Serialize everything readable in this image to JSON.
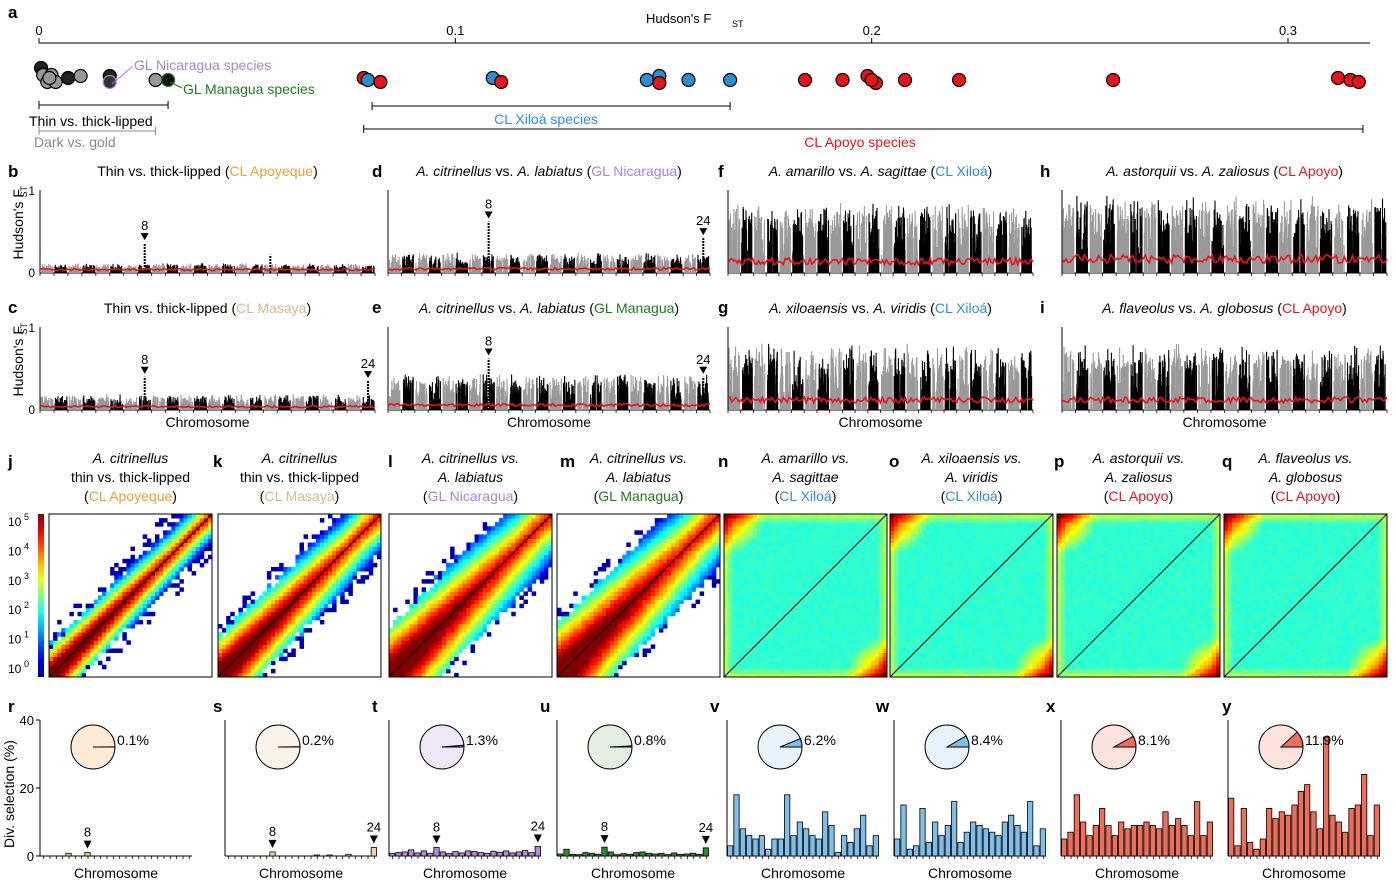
{
  "figure": {
    "letters": [
      "a",
      "b",
      "c",
      "d",
      "e",
      "f",
      "g",
      "h",
      "i",
      "j",
      "k",
      "l",
      "m",
      "n",
      "o",
      "p",
      "q",
      "r",
      "s",
      "t",
      "u",
      "v",
      "w",
      "x",
      "y"
    ]
  },
  "colors": {
    "dark": "#222222",
    "gray": "#999999",
    "apoyeque": "#E8A030",
    "masaya": "#D9B88A",
    "gl_nicaragua": "#B07FD6",
    "gl_managua": "#1E7A1E",
    "xiloa": "#2A8FD0",
    "apoyo": "#E8141B",
    "fst_red": "#E8141B",
    "hist_apoyeque": "#F2C98A",
    "hist_masaya": "#E6D3B4",
    "hist_nicaragua": "#B58AD9",
    "hist_managua": "#2E8B2E",
    "hist_xiloa": "#7DBEEA",
    "hist_apoyo": "#EE6E5A",
    "pie_apoyeque": "#FDEBD6",
    "pie_masaya": "#FBF3EA",
    "pie_nicaragua": "#EFE6F8",
    "pie_managua": "#E3EEE1",
    "pie_xiloa": "#E8F2FB",
    "pie_apoyo": "#FBE2DD"
  },
  "panel_a": {
    "axis_title": "Hudson's F",
    "axis_title_sub": "ST",
    "ticks": [
      {
        "value": 0,
        "label": "0"
      },
      {
        "value": 0.1,
        "label": "0.1"
      },
      {
        "value": 0.2,
        "label": "0.2"
      },
      {
        "value": 0.3,
        "label": "0.3"
      }
    ],
    "labels": {
      "gl_nicaragua": "GL Nicaragua species",
      "gl_managua": "GL Managua species",
      "thin_thick": "Thin vs. thick-lipped",
      "dark_gold": "Dark vs. gold",
      "cl_xiloa": "CL Xiloá species",
      "cl_apoyo": "CL Apoyo species"
    },
    "points": [
      {
        "x": 0.0005,
        "g": "dark"
      },
      {
        "x": 0.001,
        "g": "gray"
      },
      {
        "x": 0.002,
        "g": "gray"
      },
      {
        "x": 0.003,
        "g": "gray"
      },
      {
        "x": 0.004,
        "g": "gray"
      },
      {
        "x": 0.0025,
        "g": "gray"
      },
      {
        "x": 0.007,
        "g": "dark"
      },
      {
        "x": 0.01,
        "g": "gray"
      },
      {
        "x": 0.017,
        "g": "dark"
      },
      {
        "x": 0.017,
        "g": "gl_nicaragua"
      },
      {
        "x": 0.028,
        "g": "gray"
      },
      {
        "x": 0.031,
        "g": "gl_managua"
      },
      {
        "x": 0.078,
        "g": "apoyo"
      },
      {
        "x": 0.079,
        "g": "xiloa"
      },
      {
        "x": 0.082,
        "g": "apoyo"
      },
      {
        "x": 0.109,
        "g": "xiloa"
      },
      {
        "x": 0.111,
        "g": "apoyo"
      },
      {
        "x": 0.146,
        "g": "xiloa"
      },
      {
        "x": 0.149,
        "g": "xiloa"
      },
      {
        "x": 0.149,
        "g": "apoyo"
      },
      {
        "x": 0.156,
        "g": "xiloa"
      },
      {
        "x": 0.166,
        "g": "xiloa"
      },
      {
        "x": 0.184,
        "g": "apoyo"
      },
      {
        "x": 0.193,
        "g": "apoyo"
      },
      {
        "x": 0.199,
        "g": "apoyo"
      },
      {
        "x": 0.201,
        "g": "apoyo"
      },
      {
        "x": 0.2,
        "g": "apoyo"
      },
      {
        "x": 0.208,
        "g": "apoyo"
      },
      {
        "x": 0.221,
        "g": "apoyo"
      },
      {
        "x": 0.258,
        "g": "apoyo"
      },
      {
        "x": 0.312,
        "g": "apoyo"
      },
      {
        "x": 0.315,
        "g": "apoyo"
      },
      {
        "x": 0.317,
        "g": "apoyo"
      }
    ],
    "brackets": [
      {
        "from": 0,
        "to": 0.031,
        "label": "thin_thick"
      },
      {
        "from": 0,
        "to": 0.028,
        "label": "dark_gold"
      },
      {
        "from": 0.08,
        "to": 0.166,
        "label": "cl_xiloa"
      },
      {
        "from": 0.078,
        "to": 0.318,
        "label": "cl_apoyo"
      }
    ]
  },
  "manhattan": {
    "ylabel": "Hudson's F",
    "ylabel_sub": "ST",
    "xlabel": "Chromosome",
    "yticks": [
      "1",
      "0"
    ],
    "panels": [
      {
        "id": "b",
        "pre": "Thin vs. thick-lipped (",
        "italic": "",
        "post": "",
        "lake": "CL Apoyeque",
        "lakeColor": "apoyeque",
        "level": 0.08,
        "noise": 0.05,
        "redLevel": 0.04,
        "peaks": [
          {
            "chr": 8,
            "h": 0.36,
            "label": "8"
          },
          {
            "chr": 17,
            "h": 0.22
          }
        ]
      },
      {
        "id": "c",
        "pre": "Thin vs. thick-lipped (",
        "italic": "",
        "post": "",
        "lake": "CL Masaya",
        "lakeColor": "masaya",
        "level": 0.12,
        "noise": 0.1,
        "redLevel": 0.04,
        "peaks": [
          {
            "chr": 8,
            "h": 0.4,
            "label": "8"
          },
          {
            "chr": 24,
            "h": 0.35,
            "label": "24"
          }
        ]
      },
      {
        "id": "d",
        "pre": "",
        "italic": "A. citrinellus",
        "post": " vs. ",
        "italic2": "A. labiatus",
        "lake": "GL Nicaragua",
        "lakeColor": "gl_nicaragua",
        "level": 0.16,
        "noise": 0.12,
        "redLevel": 0.05,
        "peaks": [
          {
            "chr": 8,
            "h": 0.62,
            "label": "8"
          },
          {
            "chr": 24,
            "h": 0.42,
            "label": "24"
          }
        ]
      },
      {
        "id": "e",
        "pre": "",
        "italic": "A. citrinellus",
        "post": " vs. ",
        "italic2": "A. labiatus",
        "lake": "GL Managua",
        "lakeColor": "gl_managua",
        "level": 0.3,
        "noise": 0.16,
        "redLevel": 0.06,
        "peaks": [
          {
            "chr": 8,
            "h": 0.62,
            "label": "8"
          },
          {
            "chr": 24,
            "h": 0.4,
            "label": "24"
          }
        ]
      },
      {
        "id": "f",
        "pre": "",
        "italic": "A. amarillo",
        "post": " vs. ",
        "italic2": "A. sagittae",
        "lake": "CL Xiloá",
        "lakeColor": "xiloa",
        "level": 0.62,
        "noise": 0.25,
        "redLevel": 0.14,
        "peaks": []
      },
      {
        "id": "g",
        "pre": "",
        "italic": "A. xiloaensis",
        "post": " vs. ",
        "italic2": "A. viridis",
        "lake": "CL Xiloá",
        "lakeColor": "xiloa",
        "level": 0.55,
        "noise": 0.3,
        "redLevel": 0.12,
        "peaks": []
      },
      {
        "id": "h",
        "pre": "",
        "italic": "A. astorquii",
        "post": " vs. ",
        "italic2": "A. zaliosus",
        "lake": "CL Apoyo",
        "lakeColor": "apoyo",
        "level": 0.68,
        "noise": 0.25,
        "redLevel": 0.17,
        "peaks": []
      },
      {
        "id": "i",
        "pre": "",
        "italic": "A. flaveolus",
        "post": " vs. ",
        "italic2": "A. globosus",
        "lake": "CL Apoyo",
        "lakeColor": "apoyo",
        "level": 0.55,
        "noise": 0.3,
        "redLevel": 0.12,
        "peaks": []
      }
    ]
  },
  "heatmaps": {
    "cbar_ticks": [
      {
        "exp": "5",
        "label": "10"
      },
      {
        "exp": "4",
        "label": "10"
      },
      {
        "exp": "3",
        "label": "10"
      },
      {
        "exp": "2",
        "label": "10"
      },
      {
        "exp": "1",
        "label": "10"
      },
      {
        "exp": "0",
        "label": "10"
      }
    ],
    "panels": [
      {
        "id": "j",
        "l1": "A. citrinellus",
        "l2": "thin vs. thick-lipped",
        "lake": "CL Apoyeque",
        "lakeColor": "apoyeque",
        "kind": "diag",
        "width": 0.16
      },
      {
        "id": "k",
        "l1": "A. citrinellus",
        "l2": "thin vs. thick-lipped",
        "lake": "CL Masaya",
        "lakeColor": "masaya",
        "kind": "diag",
        "width": 0.22
      },
      {
        "id": "l",
        "l1": "A. citrinellus vs.",
        "l2": "A. labiatus",
        "lake": "GL Nicaragua",
        "lakeColor": "gl_nicaragua",
        "kind": "diag",
        "width": 0.28
      },
      {
        "id": "m",
        "l1": "A. citrinellus vs.",
        "l2": "A. labiatus",
        "lake": "GL Managua",
        "lakeColor": "gl_managua",
        "kind": "diag",
        "width": 0.3
      },
      {
        "id": "n",
        "l1": "A. amarillo vs.",
        "l2": "A. sagittae",
        "lake": "CL Xiloá",
        "lakeColor": "xiloa",
        "kind": "flat"
      },
      {
        "id": "o",
        "l1": "A. xiloaensis vs.",
        "l2": "A. viridis",
        "lake": "CL Xiloá",
        "lakeColor": "xiloa",
        "kind": "flat"
      },
      {
        "id": "p",
        "l1": "A. astorquii vs.",
        "l2": "A. zaliosus",
        "lake": "CL Apoyo",
        "lakeColor": "apoyo",
        "kind": "flat"
      },
      {
        "id": "q",
        "l1": "A. flaveolus vs.",
        "l2": "A. globosus",
        "lake": "CL Apoyo",
        "lakeColor": "apoyo",
        "kind": "flat"
      }
    ]
  },
  "selection": {
    "ylabel": "Div. selection (%)",
    "xlabel": "Chromosome",
    "yticks": [
      40,
      20,
      0
    ],
    "ylim": [
      0,
      40
    ],
    "panels": [
      {
        "id": "r",
        "pct": 0.1,
        "pctLabel": "0.1%",
        "pie": "pie_apoyeque",
        "bar": "hist_apoyeque",
        "values": [
          0,
          0,
          0,
          0,
          0.8,
          0,
          0,
          1.0,
          0,
          0,
          0,
          0,
          0,
          0,
          0,
          0,
          0,
          0,
          0,
          0,
          0,
          0,
          0,
          0
        ],
        "arrows": [
          {
            "chr": 8,
            "label": "8"
          }
        ]
      },
      {
        "id": "s",
        "pct": 0.2,
        "pctLabel": "0.2%",
        "pie": "pie_masaya",
        "bar": "hist_masaya",
        "values": [
          0,
          0,
          0,
          0,
          0,
          0,
          0,
          1.2,
          0,
          0,
          0,
          0,
          0,
          0,
          0.3,
          0,
          0.3,
          0,
          0,
          0.5,
          0,
          0,
          0,
          2.5
        ],
        "arrows": [
          {
            "chr": 8,
            "label": "8"
          },
          {
            "chr": 24,
            "label": "24"
          }
        ]
      },
      {
        "id": "t",
        "pct": 1.3,
        "pctLabel": "1.3%",
        "pie": "pie_nicaragua",
        "bar": "hist_nicaragua",
        "values": [
          0.8,
          1,
          1.2,
          1.8,
          0.9,
          1.5,
          0.8,
          2.5,
          1.2,
          0.7,
          1.3,
          0.9,
          1.5,
          1.3,
          1,
          0.8,
          1.4,
          1.1,
          1.5,
          0.9,
          1.2,
          1.6,
          1,
          2.8
        ],
        "arrows": [
          {
            "chr": 8,
            "label": "8"
          },
          {
            "chr": 24,
            "label": "24"
          }
        ]
      },
      {
        "id": "u",
        "pct": 0.8,
        "pctLabel": "0.8%",
        "pie": "pie_managua",
        "bar": "hist_managua",
        "values": [
          0.6,
          2,
          0.5,
          0.4,
          1,
          0.8,
          0.5,
          2.6,
          1.2,
          0.4,
          0.7,
          0.5,
          1,
          1.2,
          0.8,
          0.6,
          0.8,
          0.4,
          0.9,
          0.5,
          0.6,
          0.8,
          0.5,
          2.4
        ],
        "arrows": [
          {
            "chr": 8,
            "label": "8"
          },
          {
            "chr": 24,
            "label": "24"
          }
        ]
      },
      {
        "id": "v",
        "pct": 6.2,
        "pctLabel": "6.2%",
        "pie": "pie_xiloa",
        "bar": "hist_xiloa",
        "values": [
          3,
          18,
          8,
          6,
          5,
          6,
          2,
          5,
          5,
          18,
          6,
          10,
          8,
          6,
          5,
          13,
          9,
          1,
          6,
          4,
          8,
          12,
          3,
          6
        ],
        "arrows": []
      },
      {
        "id": "w",
        "pct": 8.4,
        "pctLabel": "8.4%",
        "pie": "pie_xiloa",
        "bar": "hist_xiloa",
        "values": [
          5,
          15,
          2,
          3,
          14,
          4,
          10,
          6,
          9,
          16,
          4,
          7,
          10,
          9,
          8,
          7,
          6,
          10,
          12,
          9,
          7,
          16,
          3,
          8
        ],
        "arrows": []
      },
      {
        "id": "x",
        "pct": 8.1,
        "pctLabel": "8.1%",
        "pie": "pie_apoyo",
        "bar": "hist_apoyo",
        "values": [
          5,
          7,
          18,
          10,
          6,
          9,
          14,
          9,
          6,
          10,
          8,
          9,
          9,
          10,
          9,
          8,
          13,
          9,
          11,
          9,
          6,
          16,
          6,
          10
        ],
        "arrows": []
      },
      {
        "id": "y",
        "pct": 11.9,
        "pctLabel": "11.9%",
        "pie": "pie_apoyo",
        "bar": "hist_apoyo",
        "values": [
          17,
          3,
          14,
          4,
          2,
          5,
          14,
          11,
          13,
          12,
          15,
          19,
          21,
          13,
          8,
          35,
          12,
          10,
          7,
          14,
          15,
          24,
          6,
          15
        ],
        "arrows": []
      }
    ]
  },
  "chart_data": [
    {
      "type": "scatter",
      "panel": "a",
      "xlabel": "Hudson's FST",
      "xlim": [
        0,
        0.32
      ],
      "ticks": [
        0,
        0.1,
        0.2,
        0.3
      ]
    },
    {
      "type": "bar",
      "panel": "r",
      "ylabel": "Div. selection (%)",
      "xlabel": "Chromosome",
      "ylim": [
        0,
        40
      ],
      "pie_value": 0.1
    },
    {
      "type": "bar",
      "panel": "s",
      "xlabel": "Chromosome",
      "ylim": [
        0,
        40
      ],
      "pie_value": 0.2
    },
    {
      "type": "bar",
      "panel": "t",
      "xlabel": "Chromosome",
      "ylim": [
        0,
        40
      ],
      "pie_value": 1.3
    },
    {
      "type": "bar",
      "panel": "u",
      "xlabel": "Chromosome",
      "ylim": [
        0,
        40
      ],
      "pie_value": 0.8
    },
    {
      "type": "bar",
      "panel": "v",
      "xlabel": "Chromosome",
      "ylim": [
        0,
        40
      ],
      "pie_value": 6.2
    },
    {
      "type": "bar",
      "panel": "w",
      "xlabel": "Chromosome",
      "ylim": [
        0,
        40
      ],
      "pie_value": 8.4
    },
    {
      "type": "bar",
      "panel": "x",
      "xlabel": "Chromosome",
      "ylim": [
        0,
        40
      ],
      "pie_value": 8.1
    },
    {
      "type": "bar",
      "panel": "y",
      "xlabel": "Chromosome",
      "ylim": [
        0,
        40
      ],
      "pie_value": 11.9
    }
  ]
}
